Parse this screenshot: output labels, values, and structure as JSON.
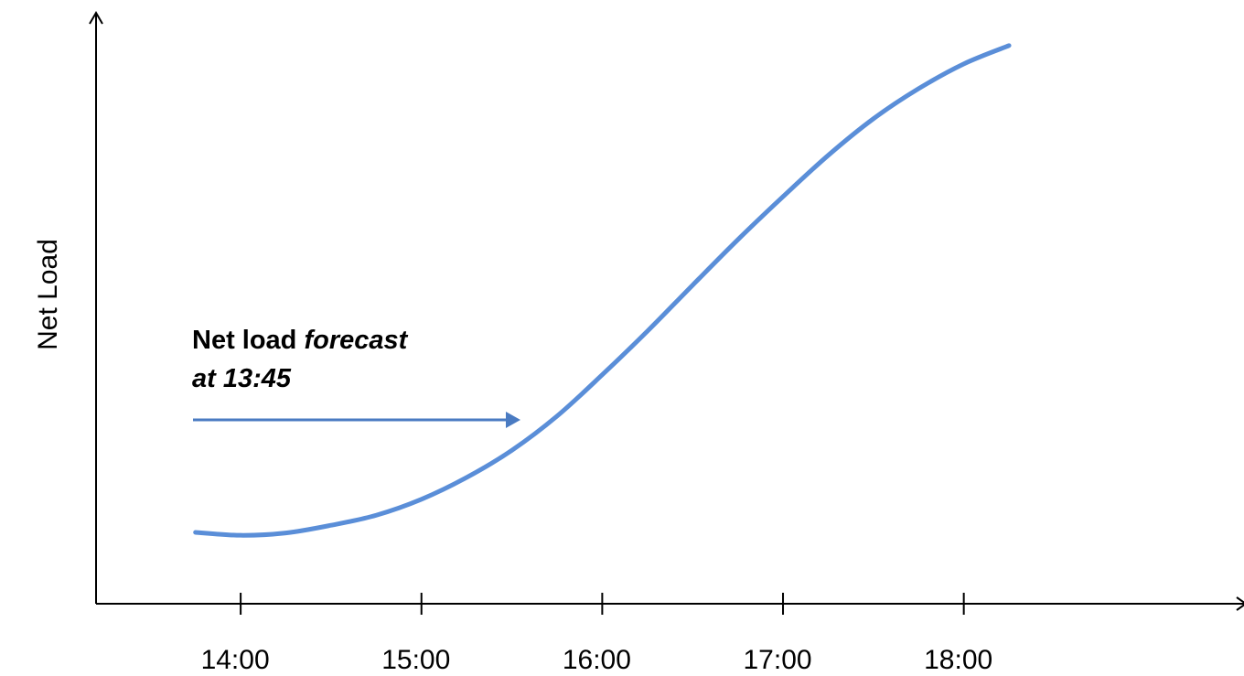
{
  "chart_data": {
    "type": "line",
    "ylabel": "Net Load",
    "annotation": {
      "line1": "Net load",
      "line1_italic": "forecast",
      "line2": "at 13:45"
    },
    "x": [
      13.75,
      14.0,
      14.25,
      14.5,
      14.75,
      15.0,
      15.25,
      15.5,
      15.75,
      16.0,
      16.25,
      16.5,
      16.75,
      17.0,
      17.25,
      17.5,
      17.75,
      18.0,
      18.25
    ],
    "series": [
      {
        "color": "#5a8ed8",
        "values": [
          12.1,
          11.6,
          12.0,
          13.3,
          15.0,
          17.7,
          21.4,
          26.0,
          31.8,
          38.8,
          46.2,
          54.0,
          61.7,
          69.0,
          76.0,
          82.2,
          87.3,
          91.5,
          94.6
        ]
      }
    ],
    "xlim": [
      13.2,
      19.55
    ],
    "xticks": [
      {
        "value": 14,
        "label": "14:00"
      },
      {
        "value": 15,
        "label": "15:00"
      },
      {
        "value": 16,
        "label": "16:00"
      },
      {
        "value": 17,
        "label": "17:00"
      },
      {
        "value": 18,
        "label": "18:00"
      }
    ],
    "ylim": [
      0,
      100
    ]
  }
}
